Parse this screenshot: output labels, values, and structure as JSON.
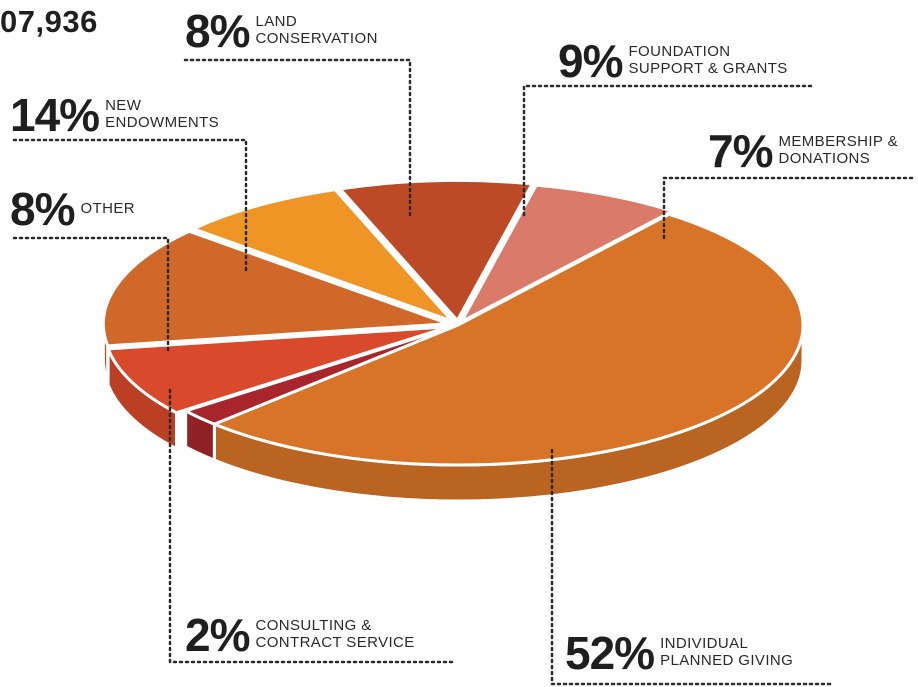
{
  "total_text": "07,936",
  "chart_data": {
    "type": "pie",
    "slices": [
      {
        "label": "INDIVIDUAL PLANNED GIVING",
        "label_lines": [
          "INDIVIDUAL",
          "PLANNED GIVING"
        ],
        "value": 52,
        "value_text": "52%",
        "color": "#D87427"
      },
      {
        "label": "CONSULTING & CONTRACT SERVICE",
        "label_lines": [
          "CONSULTING &",
          "CONTRACT SERVICE"
        ],
        "value": 2,
        "value_text": "2%",
        "color": "#A8262B"
      },
      {
        "label": "OTHER",
        "label_lines": [
          "OTHER"
        ],
        "value": 8,
        "value_text": "8%",
        "color": "#D9492B"
      },
      {
        "label": "NEW ENDOWMENTS",
        "label_lines": [
          "NEW",
          "ENDOWMENTS"
        ],
        "value": 14,
        "value_text": "14%",
        "color": "#D0682A"
      },
      {
        "label": "LAND CONSERVATION",
        "label_lines": [
          "LAND",
          "CONSERVATION"
        ],
        "value": 8,
        "value_text": "8%",
        "color": "#EE9526"
      },
      {
        "label": "FOUNDATION SUPPORT & GRANTS",
        "label_lines": [
          "FOUNDATION",
          "SUPPORT & GRANTS"
        ],
        "value": 9,
        "value_text": "9%",
        "color": "#BD4A26"
      },
      {
        "label": "MEMBERSHIP & DONATIONS",
        "label_lines": [
          "MEMBERSHIP &",
          "DONATIONS"
        ],
        "value": 7,
        "value_text": "7%",
        "color": "#DA7B69"
      }
    ],
    "style": "3d-exploded",
    "legend": "none",
    "labels": "leader-lines"
  }
}
